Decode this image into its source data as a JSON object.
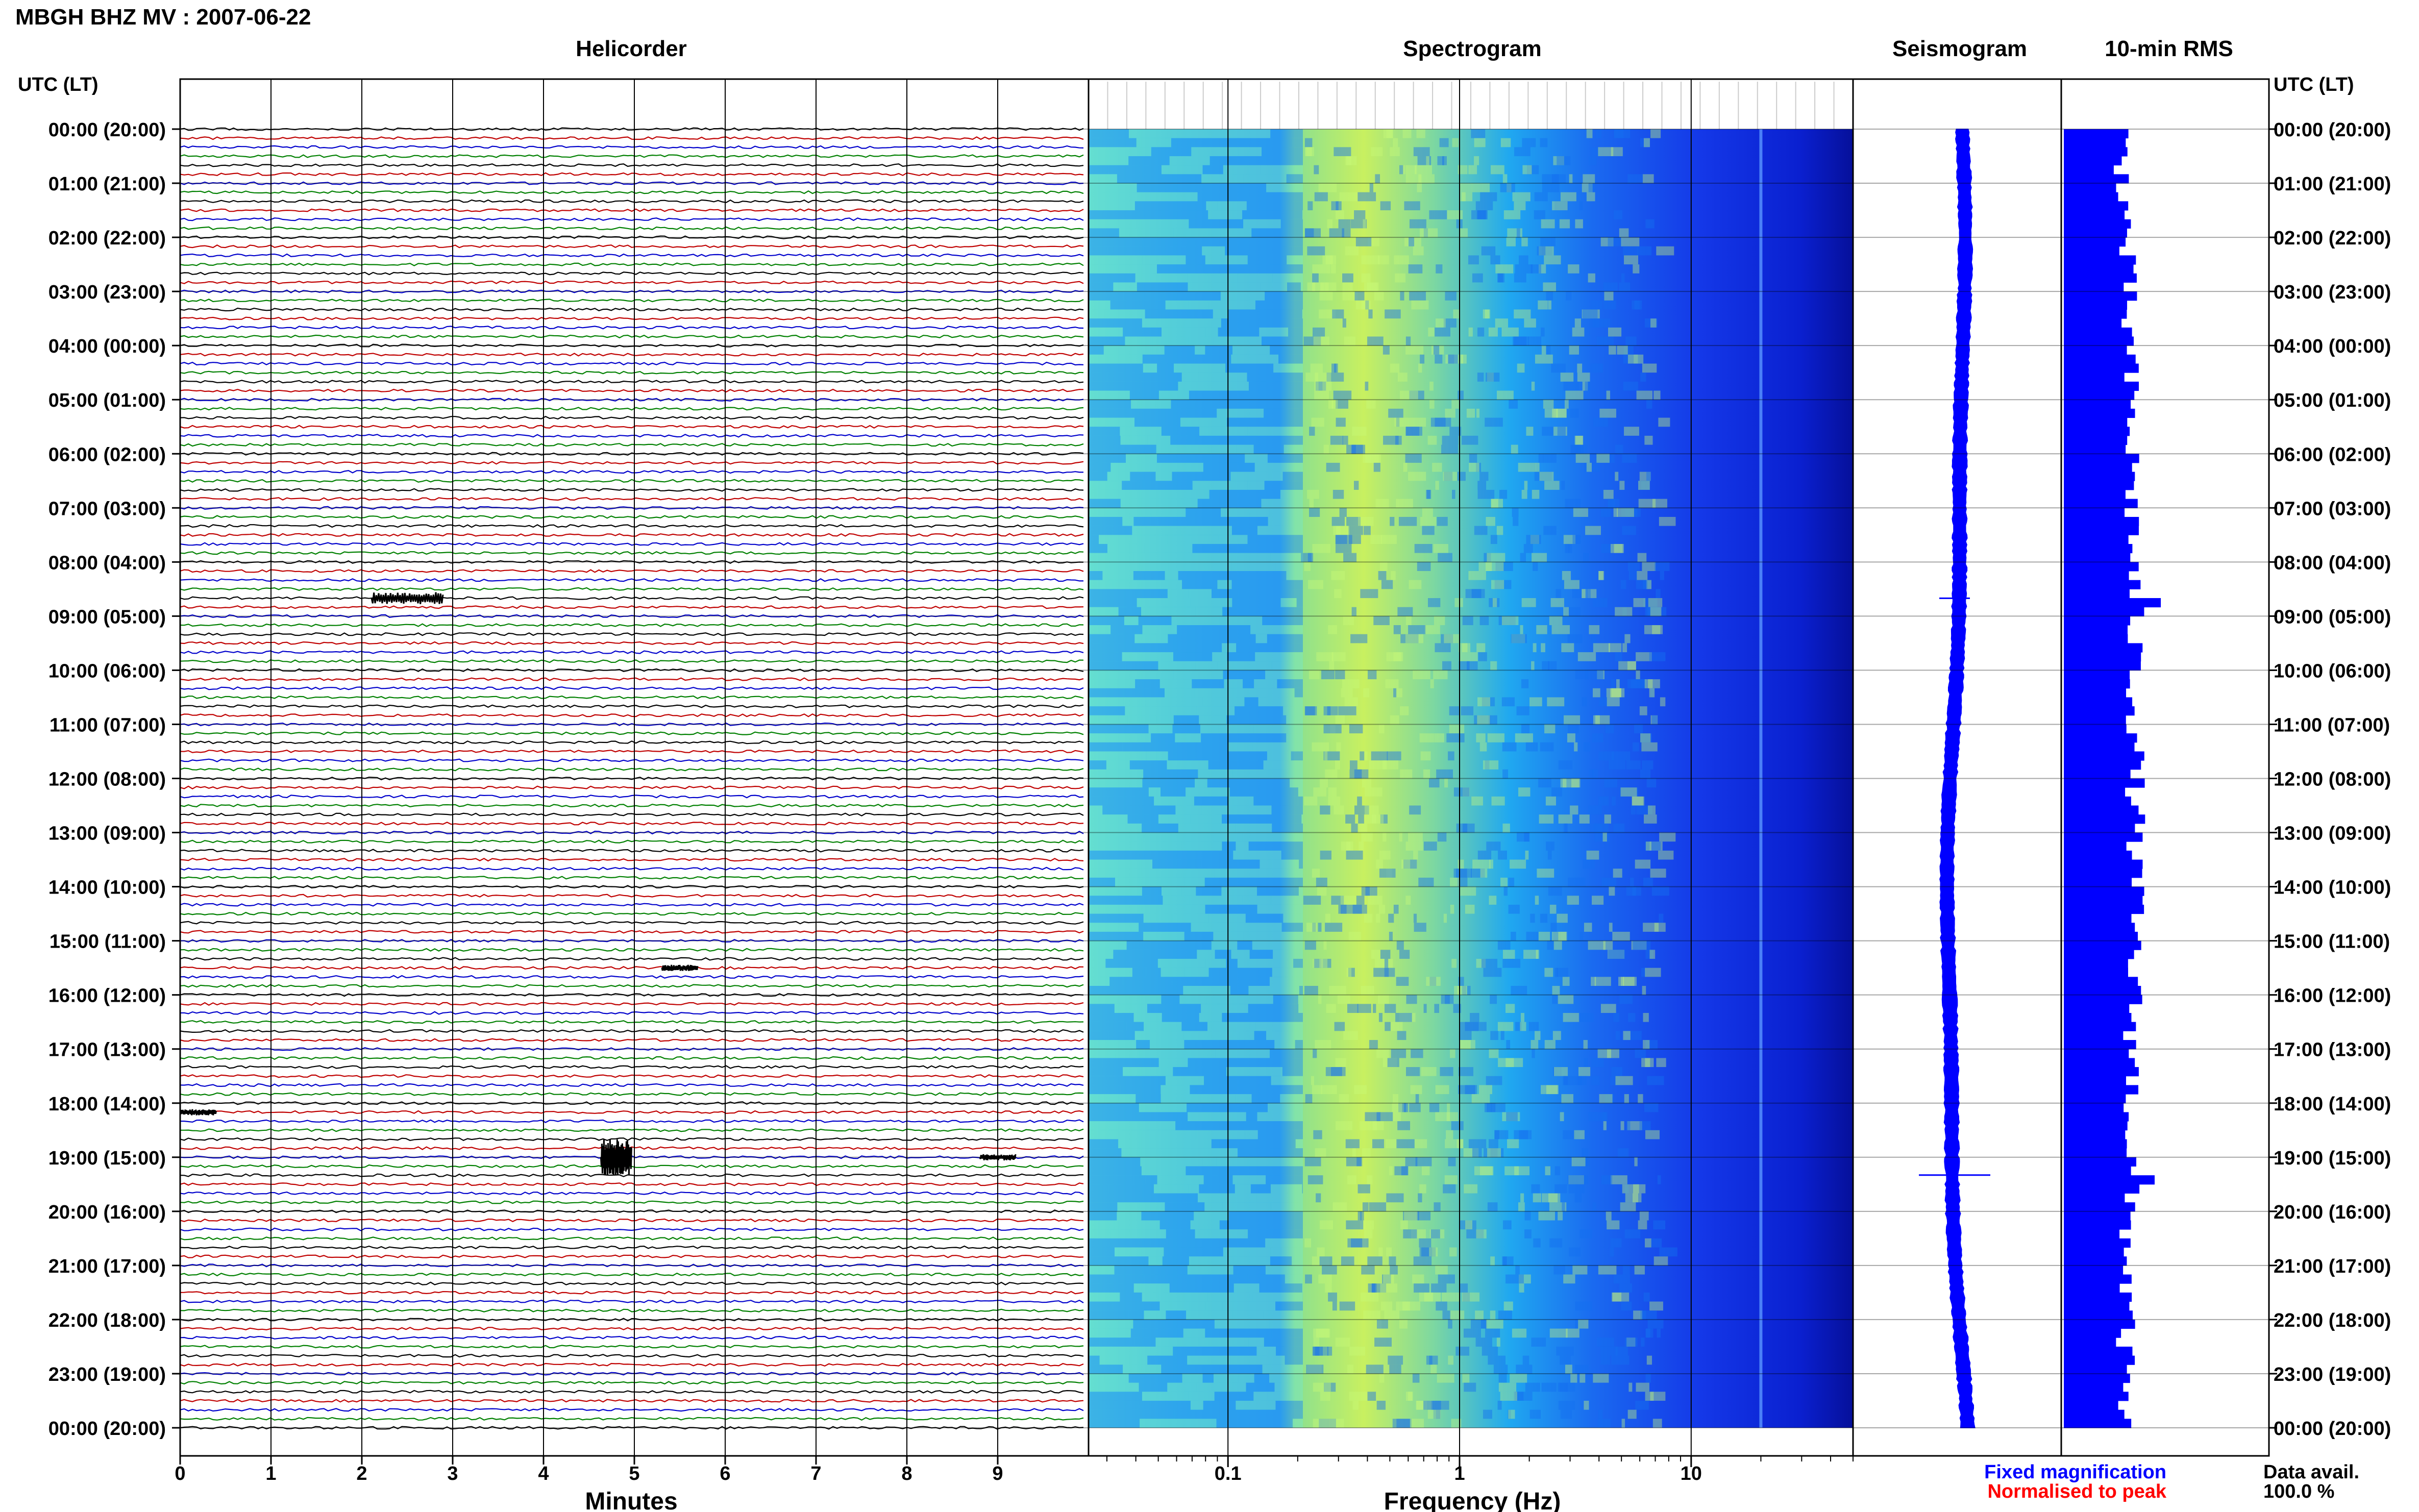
{
  "header": {
    "title": "MBGH BHZ MV : 2007-06-22",
    "utc_label_left": "UTC (LT)",
    "utc_label_right": "UTC (LT)"
  },
  "panels": {
    "helicorder": "Helicorder",
    "spectrogram": "Spectrogram",
    "seismogram": "Seismogram",
    "rms": "10-min RMS"
  },
  "time_labels": [
    "00:00 (20:00)",
    "01:00 (21:00)",
    "02:00 (22:00)",
    "03:00 (23:00)",
    "04:00 (00:00)",
    "05:00 (01:00)",
    "06:00 (02:00)",
    "07:00 (03:00)",
    "08:00 (04:00)",
    "09:00 (05:00)",
    "10:00 (06:00)",
    "11:00 (07:00)",
    "12:00 (08:00)",
    "13:00 (09:00)",
    "14:00 (10:00)",
    "15:00 (11:00)",
    "16:00 (12:00)",
    "17:00 (13:00)",
    "18:00 (14:00)",
    "19:00 (15:00)",
    "20:00 (16:00)",
    "21:00 (17:00)",
    "22:00 (18:00)",
    "23:00 (19:00)",
    "00:00 (20:00)"
  ],
  "footer": {
    "fixed_magnification": "Fixed magnification",
    "normalised_to_peak": "Normalised to peak",
    "data_avail_label": "Data avail.",
    "data_avail_value": "100.0 %"
  },
  "colors": {
    "trace_cycle": [
      "#000000",
      "#c00000",
      "#0000cc",
      "#008000"
    ],
    "blue": "#0000ff",
    "red": "#ff0000"
  },
  "chart_data": [
    {
      "type": "line",
      "name": "helicorder",
      "xlabel": "Minutes",
      "x_ticks": [
        "0",
        "1",
        "2",
        "3",
        "4",
        "5",
        "6",
        "7",
        "8",
        "9"
      ],
      "xlim": [
        0,
        10
      ],
      "rows_per_hour": 6,
      "events": [
        {
          "hour": 8.67,
          "minute": 2.5,
          "amplitude": "medium"
        },
        {
          "hour": 15.5,
          "minute": 5.5,
          "amplitude": "small"
        },
        {
          "hour": 18.17,
          "minute": 0.2,
          "amplitude": "small"
        },
        {
          "hour": 19.0,
          "minute": 4.8,
          "amplitude": "large"
        },
        {
          "hour": 19.0,
          "minute": 9.0,
          "amplitude": "small"
        }
      ]
    },
    {
      "type": "heatmap",
      "name": "spectrogram",
      "xlabel": "Frequency (Hz)",
      "x_scale": "log",
      "x_ticks": [
        "0.1",
        "1",
        "10"
      ],
      "xlim": [
        0.025,
        50
      ],
      "peak_frequency_hz": 0.4,
      "spectral_line_hz": 20
    },
    {
      "type": "line",
      "name": "seismogram",
      "ylim_hours": [
        0,
        24
      ]
    },
    {
      "type": "bar",
      "name": "10-min RMS",
      "orientation": "horizontal",
      "spikes_hours": [
        8.67,
        19.33
      ]
    }
  ]
}
